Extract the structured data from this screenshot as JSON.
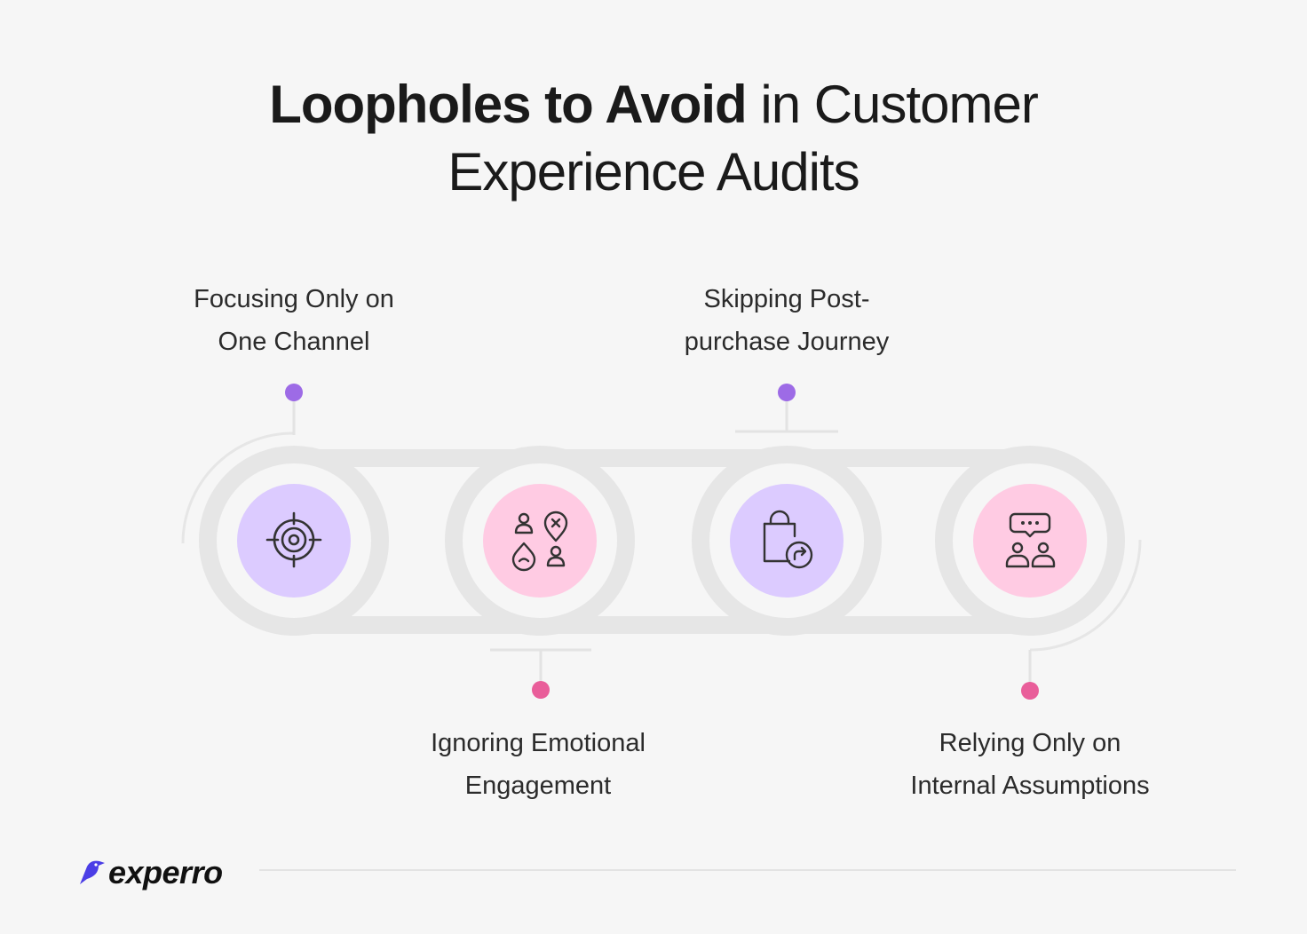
{
  "title": {
    "bold": "Loopholes to Avoid",
    "regular_line1": "in Customer",
    "line2": "Experience Audits"
  },
  "steps": [
    {
      "label_line1": "Focusing Only on",
      "label_line2": "One Channel",
      "icon": "target-icon",
      "position": "top"
    },
    {
      "label_line1": "Ignoring Emotional",
      "label_line2": "Engagement",
      "icon": "emotion-people-icon",
      "position": "bottom"
    },
    {
      "label_line1": "Skipping Post-",
      "label_line2": "purchase Journey",
      "icon": "shopping-bag-return-icon",
      "position": "top"
    },
    {
      "label_line1": "Relying Only on",
      "label_line2": "Internal Assumptions",
      "icon": "discussion-people-icon",
      "position": "bottom"
    }
  ],
  "colors": {
    "background": "#f6f6f6",
    "purple_circle": "#dccbff",
    "pink_circle": "#ffcbe3",
    "purple_dot": "#9d6be6",
    "pink_dot": "#e95e9a",
    "track": "#e6e6e6"
  },
  "brand": {
    "name": "experro"
  }
}
